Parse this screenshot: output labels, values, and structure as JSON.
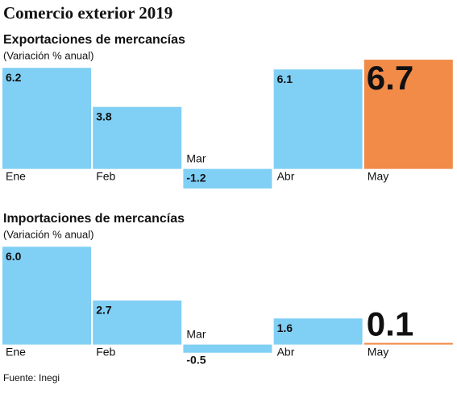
{
  "title": "Comercio exterior 2019",
  "source": "Fuente: Inegi",
  "chart_data": [
    {
      "type": "bar",
      "title": "Exportaciones de mercancías",
      "subtitle": "(Variación % anual)",
      "categories": [
        "Ene",
        "Feb",
        "Mar",
        "Abr",
        "May"
      ],
      "values": [
        6.2,
        3.8,
        -1.2,
        6.1,
        6.7
      ],
      "colors": [
        "#80cff5",
        "#80cff5",
        "#80cff5",
        "#80cff5",
        "#f28a48"
      ],
      "ylim": [
        -1.5,
        7
      ]
    },
    {
      "type": "bar",
      "title": "Importaciones de mercancías",
      "subtitle": "(Variación % anual)",
      "categories": [
        "Ene",
        "Feb",
        "Mar",
        "Abr",
        "May"
      ],
      "values": [
        6.0,
        2.7,
        -0.5,
        1.6,
        0.1
      ],
      "value_labels": [
        "6.0",
        "2.7",
        "-0.5",
        "1.6",
        "0.1"
      ],
      "colors": [
        "#80cff5",
        "#80cff5",
        "#80cff5",
        "#80cff5",
        "#f28a48"
      ],
      "ylim": [
        -1.5,
        7
      ]
    }
  ]
}
